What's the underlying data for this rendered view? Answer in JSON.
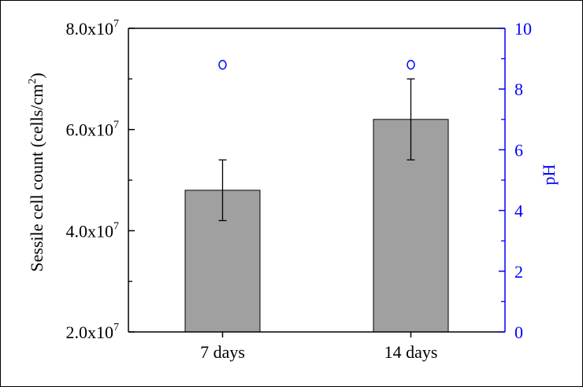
{
  "chart_data": {
    "type": "bar",
    "categories": [
      "7 days",
      "14 days"
    ],
    "left_axis": {
      "label_prefix": "Sessile cell count (cells/cm",
      "label_sup": "2",
      "label_suffix": ")",
      "ylim": [
        20000000,
        80000000
      ],
      "ticks": [
        {
          "value": 20000000,
          "mantissa": "2.0x10",
          "exp": "7"
        },
        {
          "value": 40000000,
          "mantissa": "4.0x10",
          "exp": "7"
        },
        {
          "value": 60000000,
          "mantissa": "6.0x10",
          "exp": "7"
        },
        {
          "value": 80000000,
          "mantissa": "8.0x10",
          "exp": "7"
        }
      ]
    },
    "right_axis": {
      "label": "pH",
      "ylim": [
        0,
        10
      ],
      "ticks": [
        "0",
        "2",
        "4",
        "6",
        "8",
        "10"
      ],
      "color": "#0000ff"
    },
    "series": [
      {
        "type": "bar",
        "axis": "left",
        "values": [
          48000000,
          62000000
        ],
        "error_low": [
          42000000,
          54000000
        ],
        "error_high": [
          54000000,
          70000000
        ],
        "color": "#a0a0a0"
      },
      {
        "type": "scatter",
        "axis": "right",
        "marker": "open-circle",
        "values": [
          8.8,
          8.8
        ],
        "color": "#0000ff"
      }
    ],
    "grid": false
  }
}
